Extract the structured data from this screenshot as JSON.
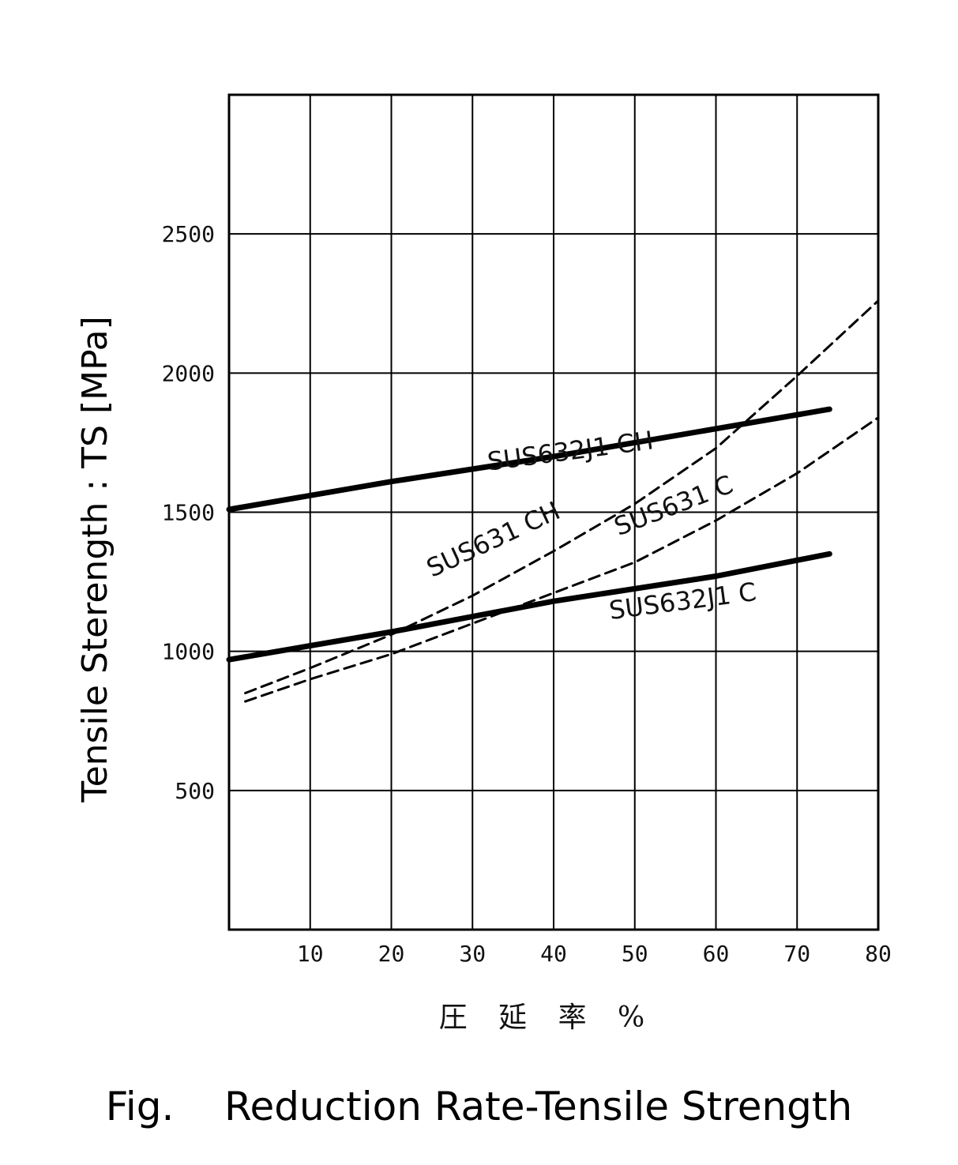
{
  "caption": "Fig.    Reduction Rate-Tensile Strength",
  "chart_data": {
    "type": "line",
    "xlabel": "圧 延 率 %",
    "ylabel": "Tensile Sterength : TS [MPa]",
    "xlim": [
      0,
      80
    ],
    "ylim": [
      0,
      3000
    ],
    "xticks": [
      10,
      20,
      30,
      40,
      50,
      60,
      70,
      80
    ],
    "yticks": [
      500,
      1000,
      1500,
      2000,
      2500
    ],
    "grid": true,
    "series": [
      {
        "name": "SUS632J1 CH",
        "style": "solid",
        "x": [
          0,
          20,
          40,
          60,
          74
        ],
        "y": [
          1510,
          1610,
          1700,
          1800,
          1870
        ]
      },
      {
        "name": "SUS632J1 C",
        "style": "solid",
        "x": [
          0,
          20,
          40,
          60,
          74
        ],
        "y": [
          970,
          1070,
          1180,
          1270,
          1350
        ]
      },
      {
        "name": "SUS631 CH",
        "style": "dashed",
        "x": [
          2,
          10,
          20,
          30,
          40,
          50,
          60,
          70,
          80
        ],
        "y": [
          850,
          940,
          1060,
          1200,
          1360,
          1530,
          1730,
          1990,
          2260
        ]
      },
      {
        "name": "SUS631 C",
        "style": "dashed",
        "x": [
          2,
          10,
          20,
          30,
          40,
          50,
          60,
          70,
          80
        ],
        "y": [
          820,
          900,
          990,
          1100,
          1210,
          1320,
          1470,
          1640,
          1840
        ]
      }
    ]
  }
}
